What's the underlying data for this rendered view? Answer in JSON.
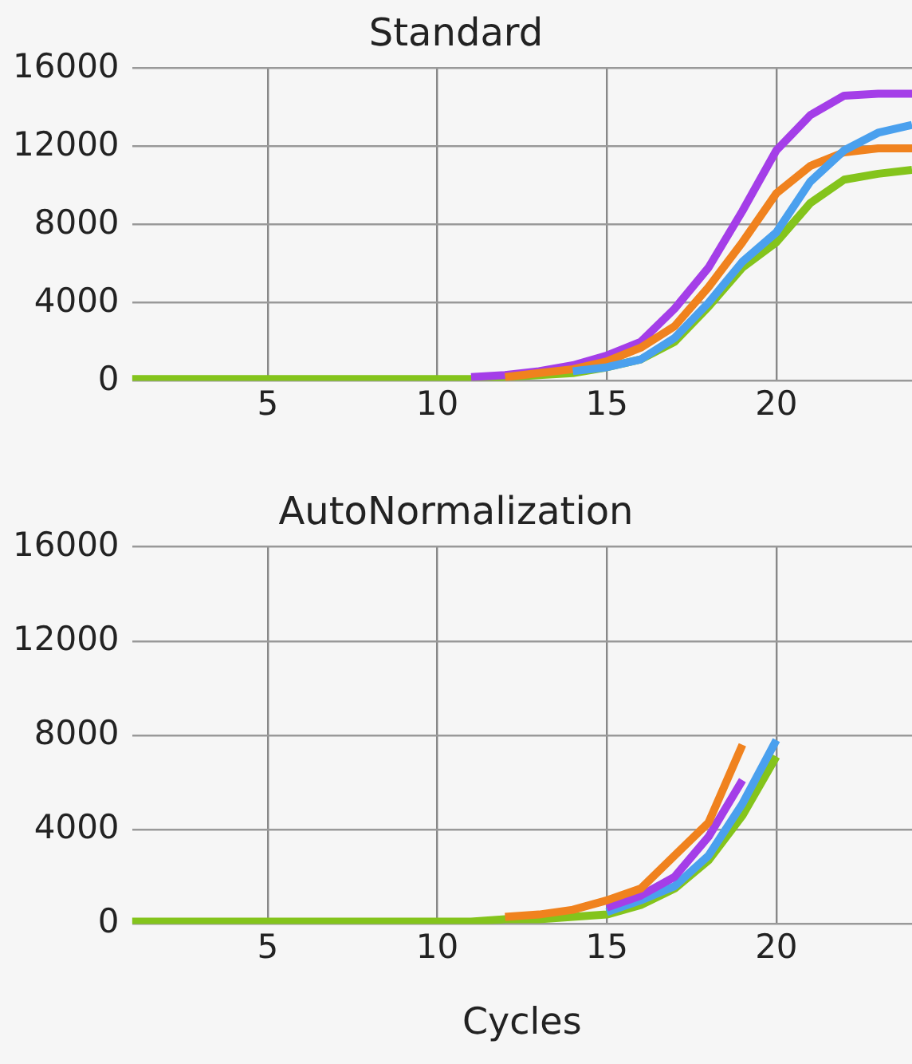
{
  "chart_data": [
    {
      "type": "line",
      "title": "Standard",
      "x": [
        1,
        2,
        3,
        4,
        5,
        6,
        7,
        8,
        9,
        10,
        11,
        12,
        13,
        14,
        15,
        16,
        17,
        18,
        19,
        20,
        21,
        22,
        23,
        24
      ],
      "xlim": [
        1,
        24
      ],
      "xticks": [
        5,
        10,
        15,
        20
      ],
      "ylim": [
        0,
        16000
      ],
      "yticks": [
        0,
        4000,
        8000,
        12000,
        16000
      ],
      "grid": true,
      "legend": false,
      "series": [
        {
          "color": "#4aa0ee",
          "values": [
            null,
            null,
            null,
            null,
            null,
            null,
            null,
            null,
            null,
            null,
            null,
            null,
            null,
            500,
            700,
            1100,
            2200,
            4000,
            6100,
            7600,
            10200,
            11800,
            12700,
            13100
          ]
        },
        {
          "color": "#f0821e",
          "values": [
            null,
            null,
            null,
            null,
            null,
            null,
            null,
            null,
            null,
            null,
            null,
            200,
            400,
            600,
            1000,
            1700,
            2800,
            4800,
            7100,
            9600,
            11000,
            11700,
            11900,
            11900
          ]
        },
        {
          "color": "#a43ee8",
          "values": [
            null,
            null,
            null,
            null,
            null,
            null,
            null,
            null,
            null,
            null,
            200,
            300,
            500,
            800,
            1300,
            2000,
            3700,
            5800,
            8700,
            11800,
            13600,
            14600,
            14700,
            14700
          ]
        },
        {
          "color": "#84c41c",
          "values": [
            100,
            100,
            100,
            100,
            100,
            100,
            100,
            100,
            100,
            100,
            100,
            200,
            300,
            400,
            700,
            1100,
            2000,
            3800,
            5800,
            7100,
            9100,
            10300,
            10600,
            10800
          ]
        }
      ]
    },
    {
      "type": "line",
      "title": "AutoNormalization",
      "xlabel": "Cycles",
      "x": [
        1,
        2,
        3,
        4,
        5,
        6,
        7,
        8,
        9,
        10,
        11,
        12,
        13,
        14,
        15,
        16,
        17,
        18,
        19,
        20
      ],
      "xlim": [
        1,
        24
      ],
      "xticks": [
        5,
        10,
        15,
        20
      ],
      "ylim": [
        0,
        16000
      ],
      "yticks": [
        0,
        4000,
        8000,
        12000,
        16000
      ],
      "grid": true,
      "legend": false,
      "series": [
        {
          "color": "#f0821e",
          "values": [
            null,
            null,
            null,
            null,
            null,
            null,
            null,
            null,
            null,
            null,
            null,
            300,
            400,
            600,
            1000,
            1500,
            2900,
            4300,
            7600,
            null
          ]
        },
        {
          "color": "#a43ee8",
          "values": [
            null,
            null,
            null,
            null,
            null,
            null,
            null,
            null,
            null,
            null,
            null,
            null,
            null,
            null,
            700,
            1200,
            2000,
            3700,
            6100,
            null
          ]
        },
        {
          "color": "#4aa0ee",
          "values": [
            null,
            null,
            null,
            null,
            null,
            null,
            null,
            null,
            null,
            null,
            null,
            null,
            null,
            null,
            500,
            1000,
            1600,
            2900,
            5100,
            7800
          ]
        },
        {
          "color": "#84c41c",
          "values": [
            100,
            100,
            100,
            100,
            100,
            100,
            100,
            100,
            100,
            100,
            100,
            200,
            200,
            300,
            400,
            800,
            1500,
            2700,
            4600,
            7100
          ]
        }
      ]
    }
  ]
}
